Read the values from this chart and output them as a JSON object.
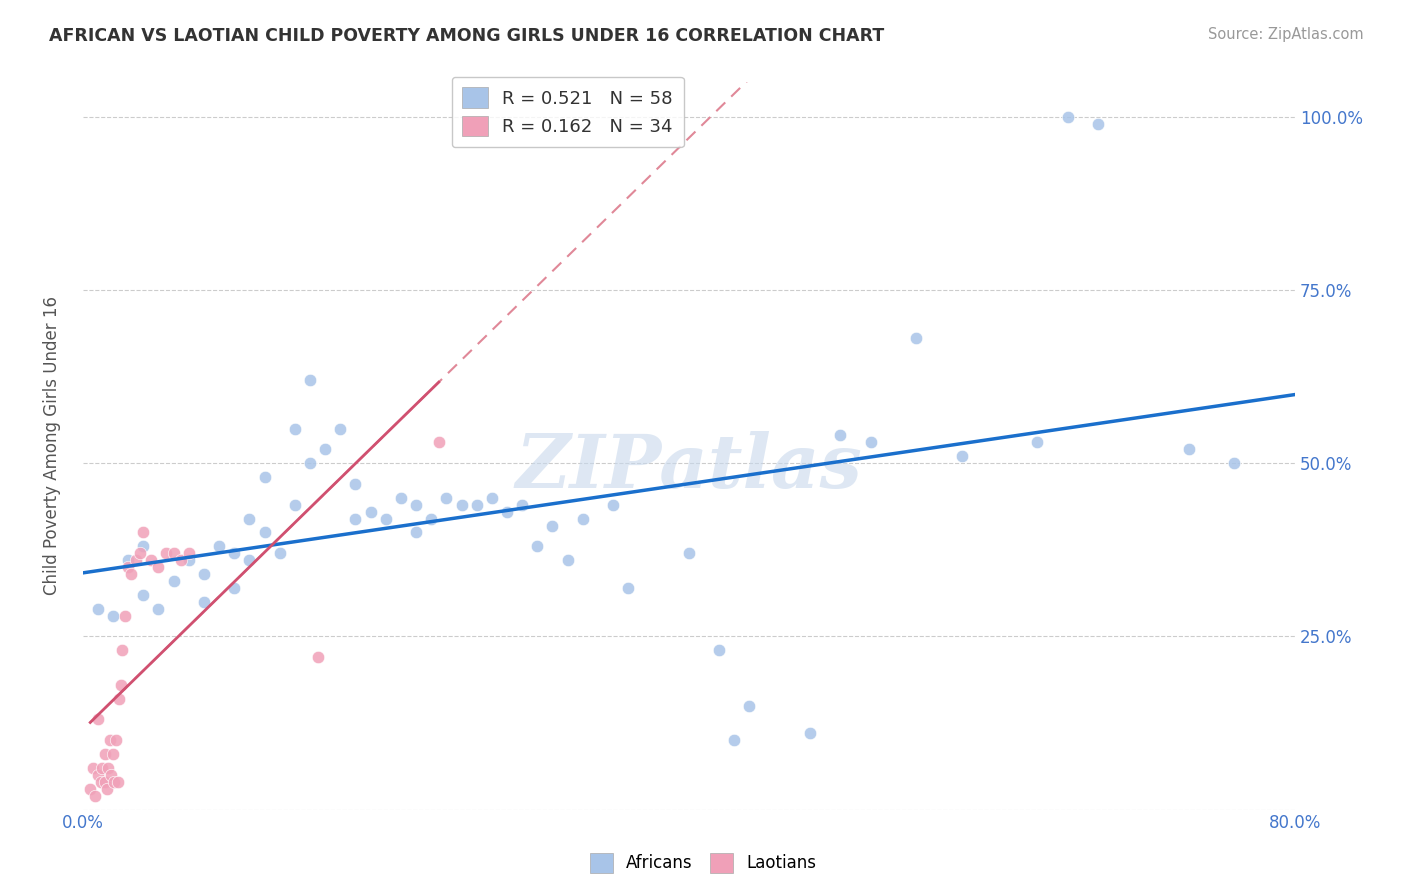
{
  "title": "AFRICAN VS LAOTIAN CHILD POVERTY AMONG GIRLS UNDER 16 CORRELATION CHART",
  "source": "Source: ZipAtlas.com",
  "ylabel": "Child Poverty Among Girls Under 16",
  "xlim": [
    0.0,
    0.8
  ],
  "ylim": [
    0.0,
    1.05
  ],
  "african_R": 0.521,
  "african_N": 58,
  "laotian_R": 0.162,
  "laotian_N": 34,
  "african_color": "#a8c4e8",
  "laotian_color": "#f0a0b8",
  "trendline_african_color": "#1a6fcc",
  "trendline_laotian_solid_color": "#d05070",
  "trendline_laotian_dashed_color": "#e08898",
  "watermark": "ZIPatlas",
  "african_x": [
    0.01,
    0.02,
    0.03,
    0.04,
    0.04,
    0.05,
    0.06,
    0.07,
    0.08,
    0.08,
    0.09,
    0.1,
    0.1,
    0.11,
    0.11,
    0.12,
    0.12,
    0.13,
    0.14,
    0.14,
    0.15,
    0.15,
    0.16,
    0.17,
    0.18,
    0.18,
    0.19,
    0.2,
    0.21,
    0.22,
    0.22,
    0.23,
    0.24,
    0.25,
    0.26,
    0.27,
    0.28,
    0.29,
    0.3,
    0.31,
    0.32,
    0.33,
    0.35,
    0.36,
    0.4,
    0.42,
    0.43,
    0.44,
    0.48,
    0.5,
    0.52,
    0.55,
    0.58,
    0.63,
    0.65,
    0.67,
    0.73,
    0.76
  ],
  "african_y": [
    0.29,
    0.28,
    0.36,
    0.31,
    0.38,
    0.29,
    0.33,
    0.36,
    0.34,
    0.3,
    0.38,
    0.32,
    0.37,
    0.42,
    0.36,
    0.48,
    0.4,
    0.37,
    0.55,
    0.44,
    0.62,
    0.5,
    0.52,
    0.55,
    0.42,
    0.47,
    0.43,
    0.42,
    0.45,
    0.44,
    0.4,
    0.42,
    0.45,
    0.44,
    0.44,
    0.45,
    0.43,
    0.44,
    0.38,
    0.41,
    0.36,
    0.42,
    0.44,
    0.32,
    0.37,
    0.23,
    0.1,
    0.15,
    0.11,
    0.54,
    0.53,
    0.68,
    0.51,
    0.53,
    1.0,
    0.99,
    0.52,
    0.5
  ],
  "laotian_x": [
    0.005,
    0.007,
    0.008,
    0.01,
    0.01,
    0.012,
    0.013,
    0.015,
    0.015,
    0.016,
    0.017,
    0.018,
    0.019,
    0.02,
    0.021,
    0.022,
    0.023,
    0.024,
    0.025,
    0.026,
    0.028,
    0.03,
    0.032,
    0.035,
    0.038,
    0.04,
    0.045,
    0.05,
    0.055,
    0.06,
    0.065,
    0.07,
    0.155,
    0.235
  ],
  "laotian_y": [
    0.03,
    0.06,
    0.02,
    0.05,
    0.13,
    0.04,
    0.06,
    0.08,
    0.04,
    0.03,
    0.06,
    0.1,
    0.05,
    0.08,
    0.04,
    0.1,
    0.04,
    0.16,
    0.18,
    0.23,
    0.28,
    0.35,
    0.34,
    0.36,
    0.37,
    0.4,
    0.36,
    0.35,
    0.37,
    0.37,
    0.36,
    0.37,
    0.22,
    0.53
  ]
}
